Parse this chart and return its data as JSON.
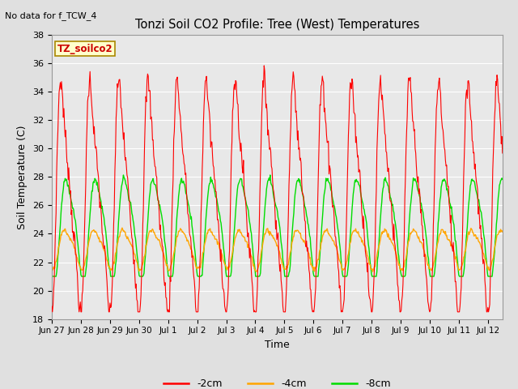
{
  "title": "Tonzi Soil CO2 Profile: Tree (West) Temperatures",
  "no_data_text": "No data for f_TCW_4",
  "legend_label_text": "TZ_soilco2",
  "xlabel": "Time",
  "ylabel": "Soil Temperature (C)",
  "ylim": [
    18,
    38
  ],
  "yticks": [
    18,
    20,
    22,
    24,
    26,
    28,
    30,
    32,
    34,
    36,
    38
  ],
  "fig_bg_color": "#e0e0e0",
  "plot_bg_color": "#e8e8e8",
  "grid_color": "#ffffff",
  "series": [
    {
      "label": "-2cm",
      "color": "#ff0000"
    },
    {
      "label": "-4cm",
      "color": "#ffa500"
    },
    {
      "label": "-8cm",
      "color": "#00dd00"
    }
  ],
  "x_tick_labels": [
    "Jun 27",
    "Jun 28",
    "Jun 29",
    "Jun 30",
    "Jul 1",
    "Jul 2",
    "Jul 3",
    "Jul 4",
    "Jul 5",
    "Jul 6",
    "Jul 7",
    "Jul 8",
    "Jul 9",
    "Jul 10",
    "Jul 11",
    "Jul 12"
  ],
  "num_ticks": 16,
  "figsize": [
    6.4,
    4.8
  ],
  "dpi": 100
}
